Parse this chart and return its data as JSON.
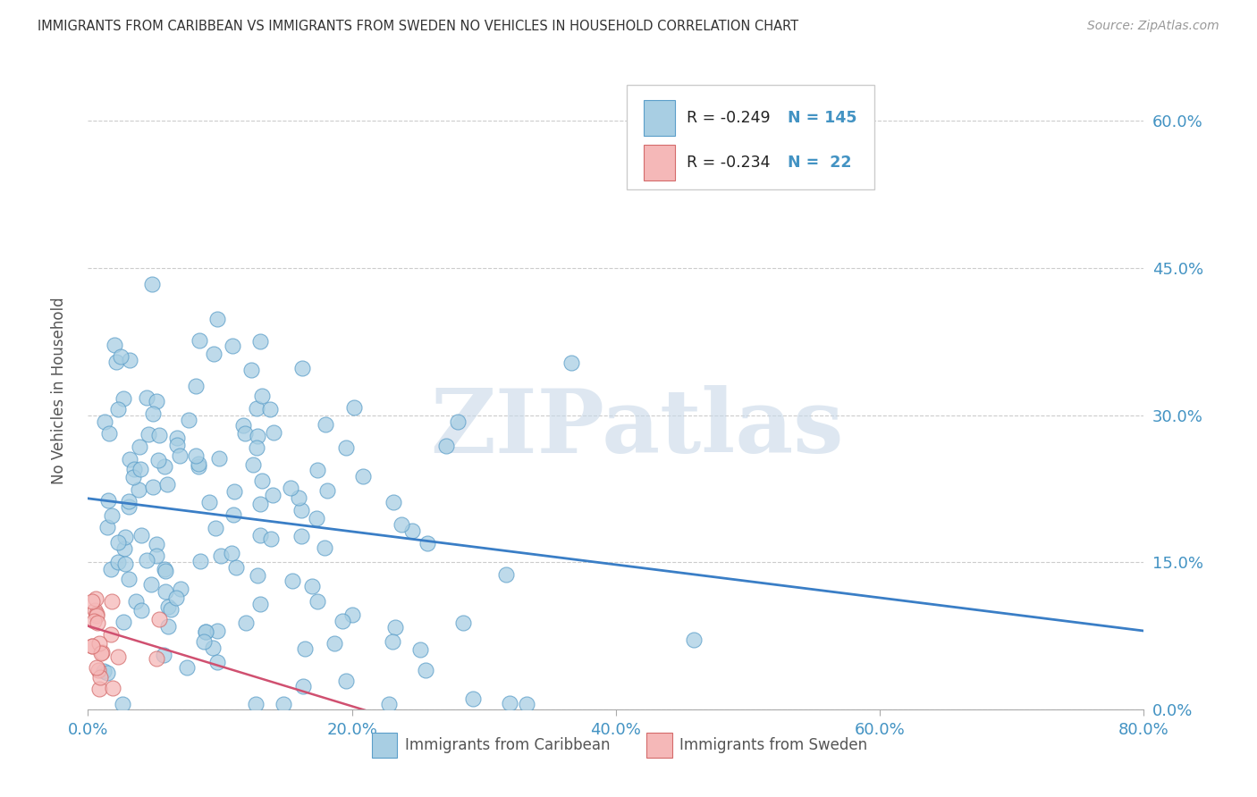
{
  "title": "IMMIGRANTS FROM CARIBBEAN VS IMMIGRANTS FROM SWEDEN NO VEHICLES IN HOUSEHOLD CORRELATION CHART",
  "source": "Source: ZipAtlas.com",
  "ylabel": "No Vehicles in Household",
  "xlim": [
    0.0,
    0.8
  ],
  "ylim": [
    0.0,
    0.65
  ],
  "xtick_labels": [
    "0.0%",
    "20.0%",
    "40.0%",
    "60.0%",
    "80.0%"
  ],
  "xtick_vals": [
    0.0,
    0.2,
    0.4,
    0.6,
    0.8
  ],
  "ytick_labels": [
    "0.0%",
    "15.0%",
    "30.0%",
    "45.0%",
    "60.0%"
  ],
  "ytick_vals": [
    0.0,
    0.15,
    0.3,
    0.45,
    0.6
  ],
  "caribbean_color": "#A8CEE3",
  "caribbean_edge": "#5B9EC9",
  "sweden_color": "#F5B8B8",
  "sweden_edge": "#D46B6B",
  "trendline_caribbean_color": "#3A7EC6",
  "trendline_sweden_color": "#D05070",
  "legend_label_caribbean": "Immigrants from Caribbean",
  "legend_label_sweden": "Immigrants from Sweden",
  "watermark": "ZIPatlas",
  "watermark_color": "#C8D8E8",
  "background_color": "#FFFFFF",
  "grid_color": "#CCCCCC",
  "tick_color": "#4393C3",
  "caribbean_trend_x0": 0.0,
  "caribbean_trend_x1": 0.8,
  "caribbean_trend_y0": 0.215,
  "caribbean_trend_y1": 0.08,
  "sweden_trend_x0": 0.0,
  "sweden_trend_x1": 0.22,
  "sweden_trend_y0": 0.085,
  "sweden_trend_y1": -0.005
}
